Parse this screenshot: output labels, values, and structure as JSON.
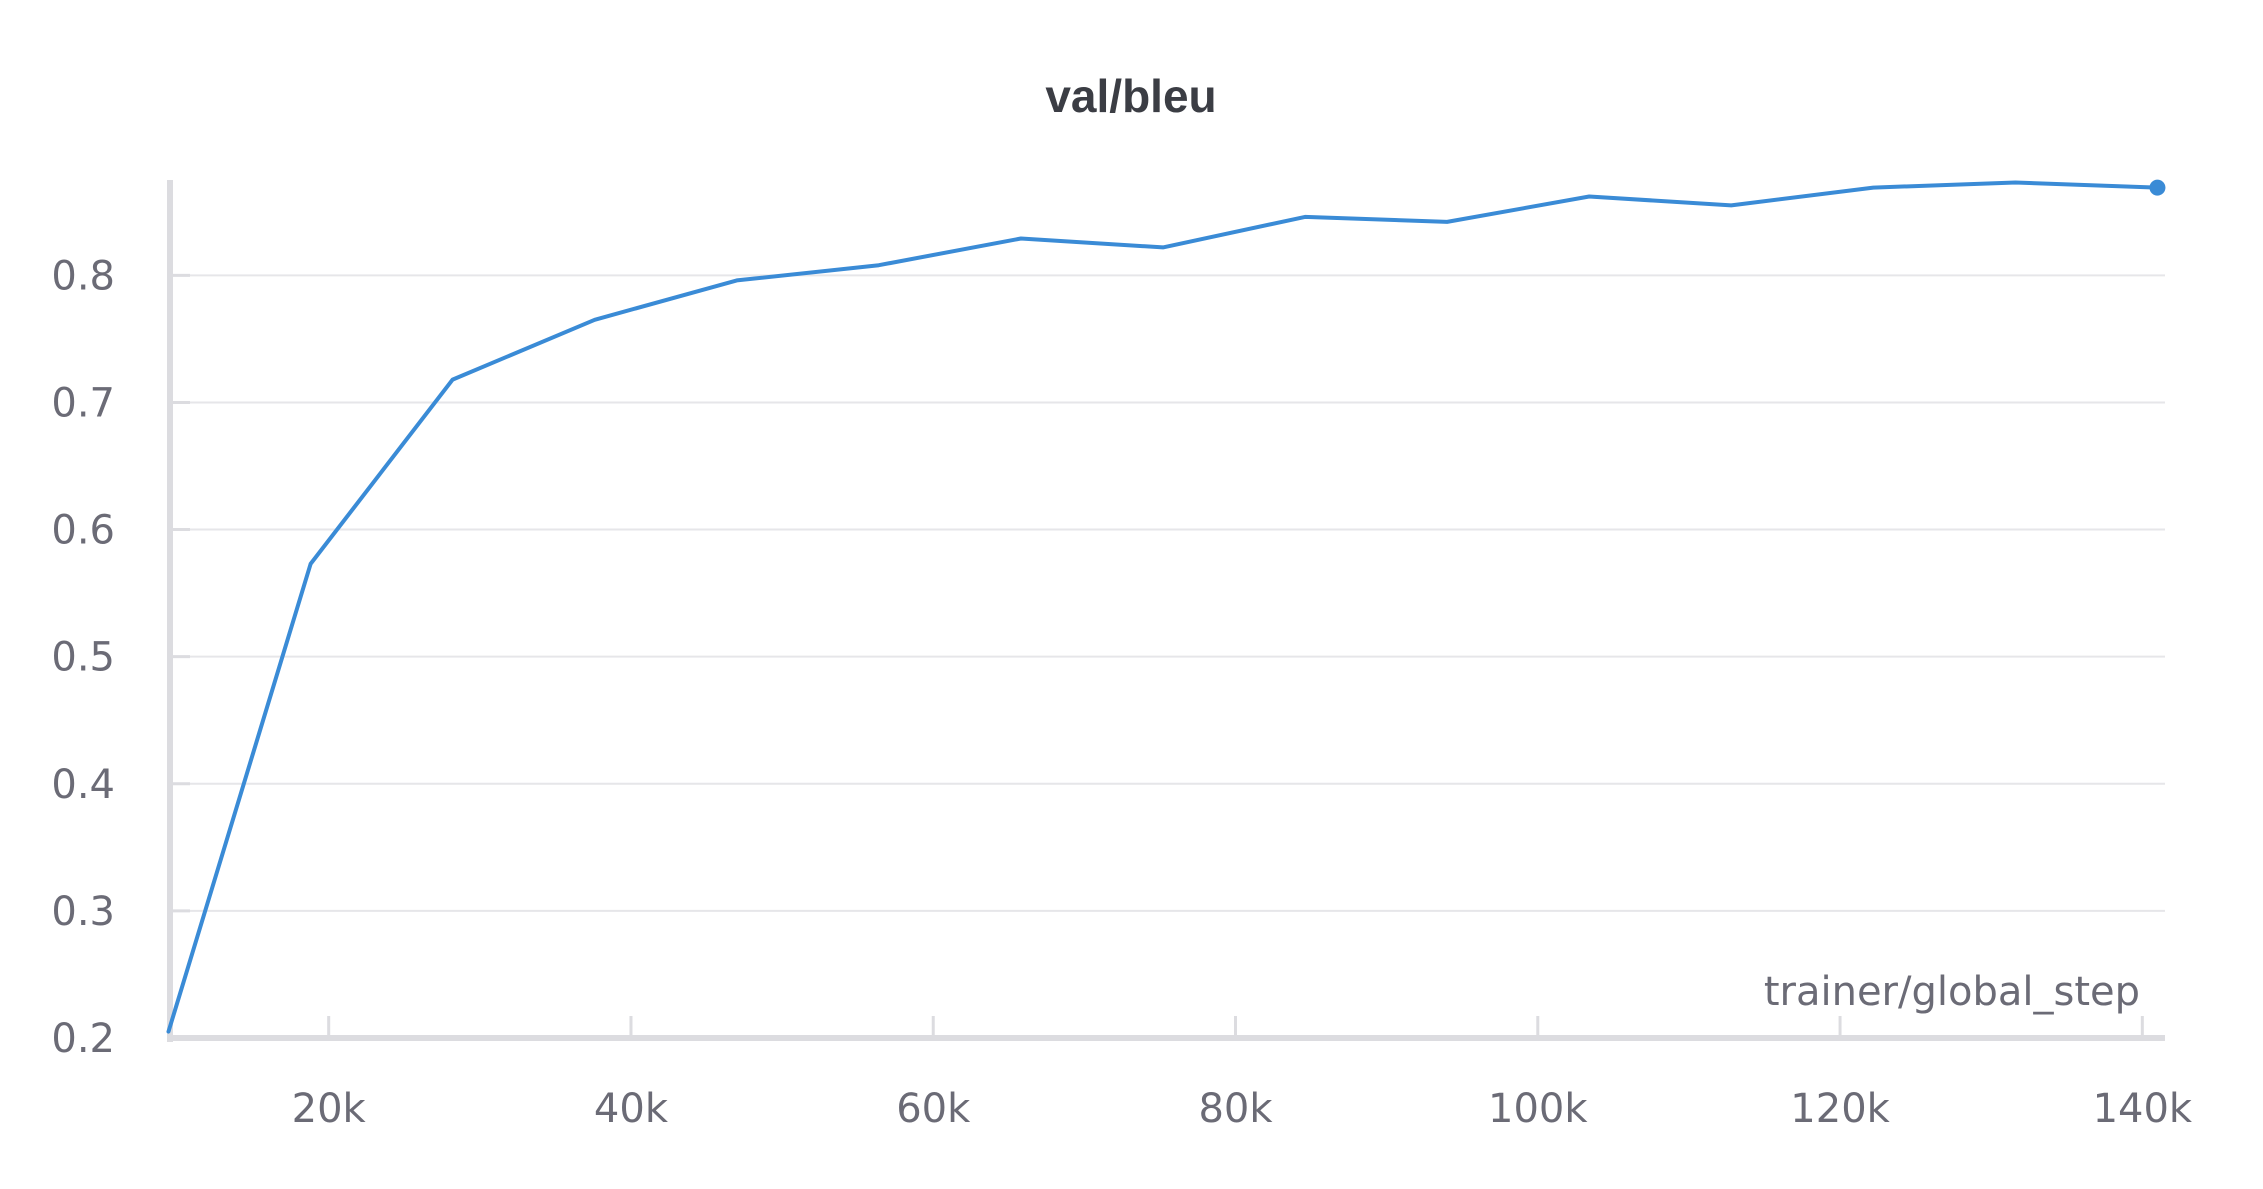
{
  "chart_data": {
    "type": "line",
    "title": "val/bleu",
    "xlabel": "trainer/global_step",
    "ylabel": "",
    "xlim": [
      9500,
      141500
    ],
    "ylim": [
      0.2,
      0.875
    ],
    "xticks": [
      20000,
      40000,
      60000,
      80000,
      100000,
      120000,
      140000
    ],
    "xtick_labels": [
      "20k",
      "40k",
      "60k",
      "80k",
      "100k",
      "120k",
      "140k"
    ],
    "yticks": [
      0.2,
      0.3,
      0.4,
      0.5,
      0.6,
      0.7,
      0.8
    ],
    "ytick_labels": [
      "0.2",
      "0.3",
      "0.4",
      "0.5",
      "0.6",
      "0.7",
      "0.8"
    ],
    "grid": true,
    "color": "#3a8bd6",
    "series": [
      {
        "x": [
          9400,
          18800,
          28200,
          37600,
          47000,
          56400,
          65800,
          75200,
          84600,
          94000,
          103400,
          112800,
          122200,
          131600,
          141000
        ],
        "y": [
          0.205,
          0.573,
          0.718,
          0.765,
          0.796,
          0.808,
          0.829,
          0.822,
          0.846,
          0.842,
          0.862,
          0.855,
          0.869,
          0.873,
          0.869
        ]
      }
    ]
  }
}
